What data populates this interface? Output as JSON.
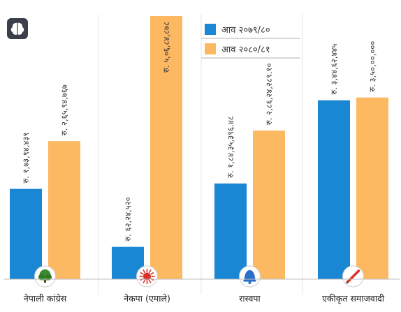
{
  "chart_data": {
    "type": "bar",
    "categories": [
      "नेपाली कांग्रेस",
      "नेकपा (एमाले)",
      "रास्वपा",
      "एकीकृत समाजवादी"
    ],
    "series": [
      {
        "name": "आव २०७९/८०",
        "color": "#1a87d4",
        "values": [
          17394439,
          6224520,
          18435396.48,
          34462445
        ],
        "labels": [
          "रु. १,७३,९४,४३९",
          "रु. ६२,२४,५२०",
          "रु. १,८४,३५,३९६.४८",
          "रु. ३,४४,६२,४४५"
        ]
      },
      {
        "name": "आव २०८०/८१",
        "color": "#fdb862",
        "values": [
          26594767,
          50684878,
          28624289.1,
          35000000
        ],
        "labels": [
          "रु. २,६५,९४,७६७",
          "रु. ५,०६,८४,८७८",
          "रु. २,८६,२४,२८९.१०",
          "रु. ३,५०,००,०००"
        ]
      }
    ],
    "icons": [
      "tree-icon",
      "sun-icon",
      "bell-icon",
      "pen-icon"
    ],
    "legend_position": "top-center",
    "grid": false
  },
  "badge_icon": "brain-icon"
}
